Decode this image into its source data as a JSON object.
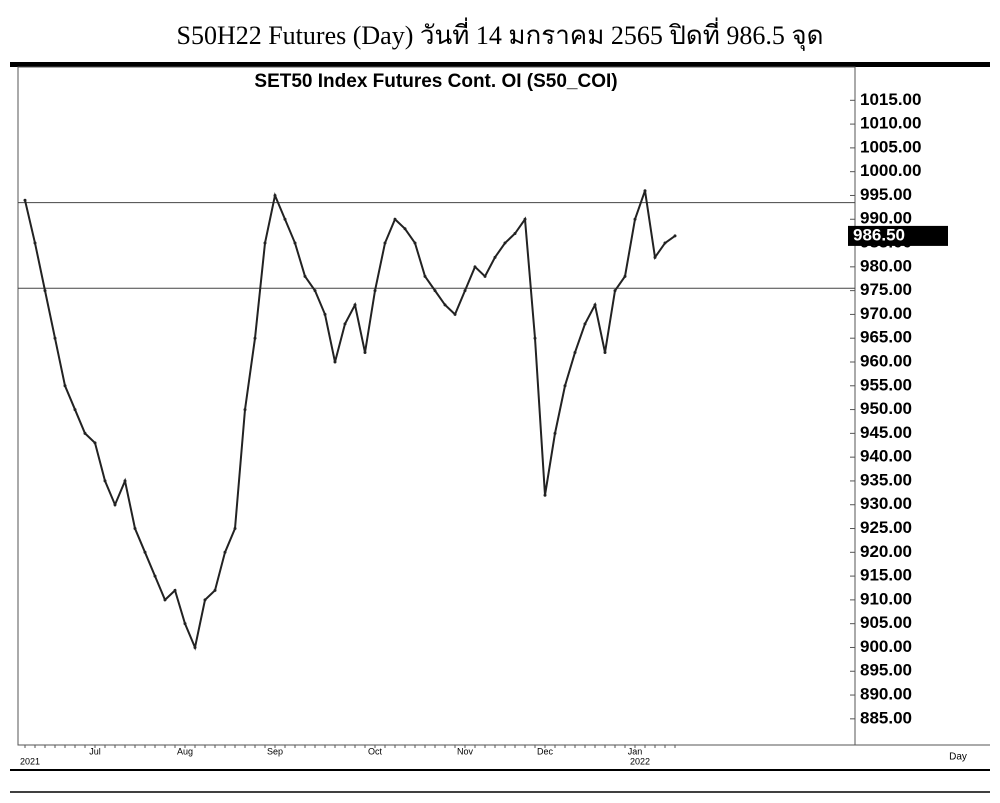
{
  "title": "S50H22 Futures (Day) วันที่ 14 มกราคม 2565 ปิดที่ 986.5 จุด",
  "chart_data": {
    "type": "line",
    "title": "SET50 Index Futures Cont. OI (S50_COI)",
    "x_label": "Day",
    "categories": [
      null,
      null,
      null,
      null,
      null,
      null,
      null,
      "Jul",
      null,
      null,
      null,
      null,
      null,
      null,
      null,
      null,
      "Aug",
      null,
      null,
      null,
      null,
      null,
      null,
      null,
      null,
      "Sep",
      null,
      null,
      null,
      null,
      null,
      null,
      null,
      null,
      null,
      "Oct",
      null,
      null,
      null,
      null,
      null,
      null,
      null,
      null,
      "Nov",
      null,
      null,
      null,
      null,
      null,
      null,
      null,
      "Dec",
      null,
      null,
      null,
      null,
      null,
      null,
      null,
      null,
      "Jan",
      null,
      null,
      null,
      null
    ],
    "category_years": [
      "2021",
      null,
      null,
      null,
      null,
      null,
      null,
      null,
      null,
      null,
      null,
      null,
      null,
      null,
      null,
      null,
      null,
      null,
      null,
      null,
      null,
      null,
      null,
      null,
      null,
      null,
      null,
      null,
      null,
      null,
      null,
      null,
      null,
      null,
      null,
      null,
      null,
      null,
      null,
      null,
      null,
      null,
      null,
      null,
      null,
      null,
      null,
      null,
      null,
      null,
      null,
      null,
      null,
      null,
      null,
      null,
      null,
      null,
      null,
      null,
      null,
      "2022",
      null,
      null,
      null,
      null
    ],
    "values": [
      994,
      985,
      975,
      965,
      955,
      950,
      945,
      943,
      935,
      930,
      935,
      925,
      920,
      915,
      910,
      912,
      905,
      900,
      910,
      912,
      920,
      925,
      950,
      965,
      985,
      995,
      990,
      985,
      978,
      975,
      970,
      960,
      968,
      972,
      962,
      975,
      985,
      990,
      988,
      985,
      978,
      975,
      972,
      970,
      975,
      980,
      978,
      982,
      985,
      987,
      990,
      965,
      932,
      945,
      955,
      962,
      968,
      972,
      962,
      975,
      978,
      990,
      996,
      982,
      985,
      986.5
    ],
    "value_labels": [
      null,
      null,
      null,
      null,
      null,
      null,
      null,
      null,
      null,
      null,
      null,
      null,
      null,
      null,
      null,
      null,
      null,
      null,
      null,
      null,
      null,
      null,
      null,
      null,
      null,
      null,
      null,
      null,
      null,
      null,
      null,
      null,
      null,
      null,
      null,
      null,
      null,
      null,
      null,
      null,
      null,
      null,
      null,
      null,
      null,
      null,
      null,
      null,
      null,
      null,
      null,
      null,
      null,
      null,
      null,
      null,
      null,
      null,
      null,
      null,
      null,
      null,
      null,
      null,
      null,
      "986.50"
    ],
    "color": "#222222",
    "hlines": [
      993.5,
      975.5
    ],
    "ylim": [
      879.5,
      1022
    ],
    "yticks": [
      {
        "value": 885,
        "label": "885.00"
      },
      {
        "value": 890,
        "label": "890.00"
      },
      {
        "value": 895,
        "label": "895.00"
      },
      {
        "value": 900,
        "label": "900.00"
      },
      {
        "value": 905,
        "label": "905.00"
      },
      {
        "value": 910,
        "label": "910.00"
      },
      {
        "value": 915,
        "label": "915.00"
      },
      {
        "value": 920,
        "label": "920.00"
      },
      {
        "value": 925,
        "label": "925.00"
      },
      {
        "value": 930,
        "label": "930.00"
      },
      {
        "value": 935,
        "label": "935.00"
      },
      {
        "value": 940,
        "label": "940.00"
      },
      {
        "value": 945,
        "label": "945.00"
      },
      {
        "value": 950,
        "label": "950.00"
      },
      {
        "value": 955,
        "label": "955.00"
      },
      {
        "value": 960,
        "label": "960.00"
      },
      {
        "value": 965,
        "label": "965.00"
      },
      {
        "value": 970,
        "label": "970.00"
      },
      {
        "value": 975,
        "label": "975.00"
      },
      {
        "value": 980,
        "label": "980.00"
      },
      {
        "value": 985,
        "label": "985.00"
      },
      {
        "value": 990,
        "label": "990.00"
      },
      {
        "value": 995,
        "label": "995.00"
      },
      {
        "value": 1000,
        "label": "1000.00"
      },
      {
        "value": 1005,
        "label": "1005.00"
      },
      {
        "value": 1010,
        "label": "1010.00"
      },
      {
        "value": 1015,
        "label": "1015.00"
      }
    ],
    "grid": false
  }
}
